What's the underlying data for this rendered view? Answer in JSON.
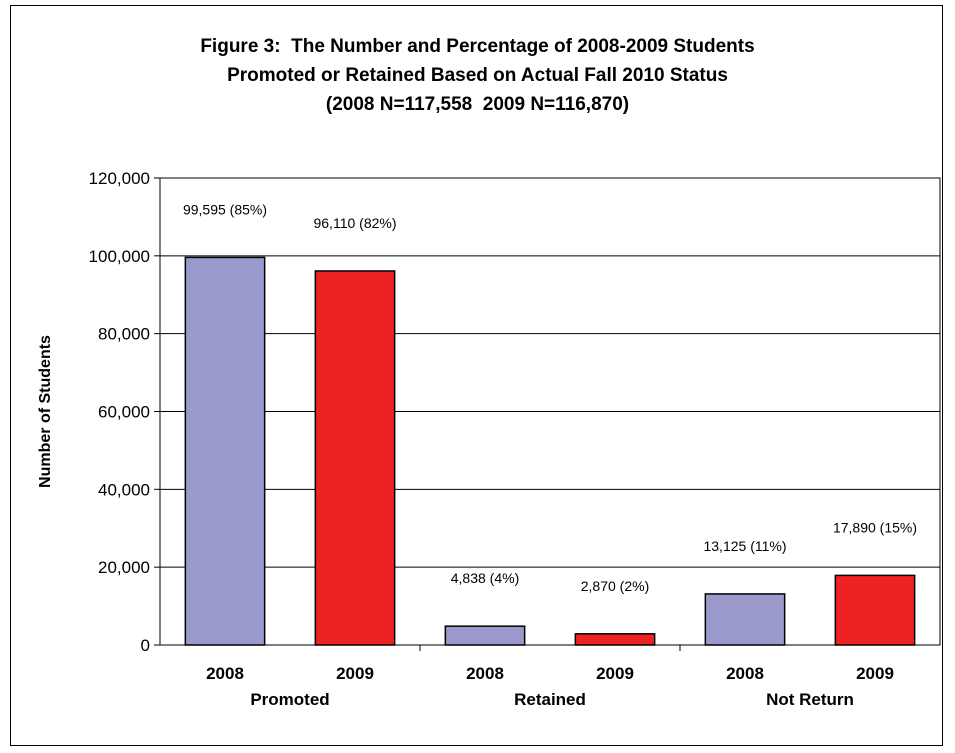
{
  "chart_data": {
    "type": "bar",
    "title_lines": [
      "Figure 3:  The Number and Percentage of 2008-2009 Students",
      "Promoted or Retained Based on Actual Fall 2010 Status",
      "(2008 N=117,558  2009 N=116,870)"
    ],
    "xlabel": "",
    "ylabel": "Number of Students",
    "ylim": [
      0,
      120000
    ],
    "yticks": [
      "0",
      "20,000",
      "40,000",
      "60,000",
      "80,000",
      "100,000",
      "120,000"
    ],
    "ytick_values": [
      0,
      20000,
      40000,
      60000,
      80000,
      100000,
      120000
    ],
    "grid": true,
    "categories": [
      {
        "group": "Promoted",
        "bars": [
          {
            "year": "2008",
            "value": 99595,
            "label": "99,595 (85%)",
            "color": "#9999cc"
          },
          {
            "year": "2009",
            "value": 96110,
            "label": "96,110 (82%)",
            "color": "#ee2222"
          }
        ]
      },
      {
        "group": "Retained",
        "bars": [
          {
            "year": "2008",
            "value": 4838,
            "label": "4,838 (4%)",
            "color": "#9999cc"
          },
          {
            "year": "2009",
            "value": 2870,
            "label": "2,870 (2%)",
            "color": "#ee2222"
          }
        ]
      },
      {
        "group": "Not Return",
        "bars": [
          {
            "year": "2008",
            "value": 13125,
            "label": "13,125 (11%)",
            "color": "#9999cc"
          },
          {
            "year": "2009",
            "value": 17890,
            "label": "17,890 (15%)",
            "color": "#ee2222"
          }
        ]
      }
    ]
  }
}
